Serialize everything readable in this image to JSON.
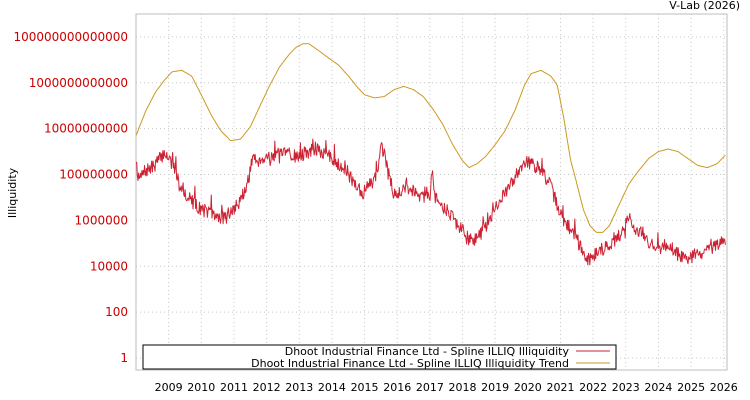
{
  "chart_data": {
    "type": "line",
    "title": "",
    "credit": "V-Lab (2026)",
    "ylabel": "Illiquidity",
    "xlabel": "",
    "yscale": "log",
    "ylim": [
      0.3,
      1000000000000000
    ],
    "xlim": [
      2008.0,
      2026.1
    ],
    "grid": true,
    "legend_position": "bottom",
    "y_ticks": [
      {
        "value": 1,
        "label": "1"
      },
      {
        "value": 100,
        "label": "100"
      },
      {
        "value": 10000,
        "label": "10000"
      },
      {
        "value": 1000000,
        "label": "1000000"
      },
      {
        "value": 100000000,
        "label": "100000000"
      },
      {
        "value": 10000000000,
        "label": "10000000000"
      },
      {
        "value": 1000000000000,
        "label": "1000000000000"
      },
      {
        "value": 100000000000000,
        "label": "100000000000000"
      }
    ],
    "x_ticks": [
      {
        "value": 2009,
        "label": "2009"
      },
      {
        "value": 2010,
        "label": "2010"
      },
      {
        "value": 2011,
        "label": "2011"
      },
      {
        "value": 2012,
        "label": "2012"
      },
      {
        "value": 2013,
        "label": "2013"
      },
      {
        "value": 2014,
        "label": "2014"
      },
      {
        "value": 2015,
        "label": "2015"
      },
      {
        "value": 2016,
        "label": "2016"
      },
      {
        "value": 2017,
        "label": "2017"
      },
      {
        "value": 2018,
        "label": "2018"
      },
      {
        "value": 2019,
        "label": "2019"
      },
      {
        "value": 2020,
        "label": "2020"
      },
      {
        "value": 2021,
        "label": "2021"
      },
      {
        "value": 2022,
        "label": "2022"
      },
      {
        "value": 2023,
        "label": "2023"
      },
      {
        "value": 2024,
        "label": "2024"
      },
      {
        "value": 2025,
        "label": "2025"
      },
      {
        "value": 2026,
        "label": "2026"
      }
    ],
    "series": [
      {
        "name": "Dhoot Industrial Finance Ltd - Spline ILLIQ Illiquidity",
        "color": "#cc2233",
        "x": [
          2008.0,
          2008.08,
          2008.15,
          2008.3,
          2008.5,
          2008.7,
          2008.9,
          2009.1,
          2009.3,
          2009.45,
          2009.6,
          2009.8,
          2010.0,
          2010.2,
          2010.4,
          2010.6,
          2010.8,
          2011.0,
          2011.2,
          2011.4,
          2011.6,
          2011.7,
          2011.85,
          2012.0,
          2012.3,
          2012.6,
          2012.9,
          2013.2,
          2013.5,
          2013.8,
          2014.0,
          2014.2,
          2014.4,
          2014.6,
          2014.8,
          2014.95,
          2015.1,
          2015.25,
          2015.4,
          2015.5,
          2015.6,
          2015.75,
          2015.9,
          2016.1,
          2016.3,
          2016.6,
          2016.9,
          2017.0,
          2017.05,
          2017.15,
          2017.3,
          2017.5,
          2017.7,
          2017.9,
          2018.1,
          2018.3,
          2018.5,
          2018.7,
          2018.9,
          2019.1,
          2019.3,
          2019.5,
          2019.7,
          2019.9,
          2020.1,
          2020.3,
          2020.5,
          2020.7,
          2020.9,
          2021.1,
          2021.3,
          2021.5,
          2021.7,
          2021.9,
          2022.1,
          2022.3,
          2022.5,
          2022.7,
          2022.9,
          2023.0,
          2023.1,
          2023.2,
          2023.35,
          2023.5,
          2023.7,
          2023.9,
          2024.1,
          2024.3,
          2024.5,
          2024.7,
          2024.9,
          2025.1,
          2025.3,
          2025.5,
          2025.7,
          2025.9,
          2026.05
        ],
        "values": [
          500000000,
          60000000,
          80000000,
          150000000,
          200000000,
          450000000,
          900000000,
          300000000,
          60000000,
          20000000,
          10000000,
          5000000,
          3000000,
          2500000,
          1500000,
          1300000,
          1500000,
          3000000,
          8000000,
          30000000,
          800000000,
          400000000,
          500000000,
          600000000,
          700000000,
          800000000,
          600000000,
          900000000,
          1200000000,
          800000000,
          500000000,
          300000000,
          200000000,
          60000000,
          30000000,
          15000000,
          30000000,
          50000000,
          120000000,
          1500000000,
          800000000,
          80000000,
          15000000,
          20000000,
          25000000,
          18000000,
          15000000,
          10000000,
          200000000,
          12000000,
          5000000,
          3000000,
          1500000,
          500000,
          200000,
          120000,
          200000,
          500000,
          2000000,
          5000000,
          15000000,
          40000000,
          150000000,
          400000000,
          300000000,
          200000000,
          100000000,
          30000000,
          5000000,
          800000,
          400000,
          200000,
          30000,
          20000,
          40000,
          60000,
          80000,
          150000,
          300000,
          600000,
          2000000,
          500000,
          400000,
          300000,
          100000,
          80000,
          60000,
          100000,
          40000,
          30000,
          20000,
          30000,
          40000,
          50000,
          60000,
          90000,
          120000
        ]
      },
      {
        "name": "Dhoot Industrial Finance Ltd - Spline ILLIQ Illiquidity Trend",
        "color": "#cc9922",
        "x": [
          2008.0,
          2008.3,
          2008.6,
          2008.85,
          2009.1,
          2009.4,
          2009.7,
          2010.0,
          2010.3,
          2010.6,
          2010.9,
          2011.2,
          2011.5,
          2011.8,
          2012.1,
          2012.4,
          2012.7,
          2012.9,
          2013.1,
          2013.3,
          2013.6,
          2013.9,
          2014.2,
          2014.5,
          2014.8,
          2015.0,
          2015.3,
          2015.6,
          2015.9,
          2016.2,
          2016.5,
          2016.8,
          2017.1,
          2017.4,
          2017.7,
          2018.0,
          2018.2,
          2018.45,
          2018.7,
          2019.0,
          2019.3,
          2019.6,
          2019.9,
          2020.1,
          2020.4,
          2020.7,
          2020.9,
          2021.1,
          2021.3,
          2021.5,
          2021.7,
          2021.9,
          2022.1,
          2022.3,
          2022.5,
          2022.8,
          2023.1,
          2023.4,
          2023.7,
          2024.0,
          2024.3,
          2024.6,
          2024.9,
          2025.2,
          2025.5,
          2025.8,
          2026.05
        ],
        "values": [
          5000000000,
          60000000000,
          400000000000,
          1200000000000,
          3000000000000,
          3500000000000,
          2000000000000,
          300000000000,
          40000000000,
          8000000000,
          3000000000,
          3500000000,
          12000000000,
          100000000000,
          800000000000,
          5000000000000,
          18000000000000,
          35000000000000,
          50000000000000,
          50000000000000,
          25000000000000,
          12000000000000,
          6000000000000,
          2000000000000,
          600000000000,
          300000000000,
          220000000000,
          250000000000,
          500000000000,
          700000000000,
          500000000000,
          250000000000,
          70000000000,
          15000000000,
          2000000000,
          400000000,
          200000000,
          300000000,
          600000000,
          2000000000,
          8000000000,
          60000000000,
          800000000000,
          2500000000000,
          3500000000000,
          2000000000000,
          800000000000,
          30000000000,
          500000000,
          40000000,
          3000000,
          600000,
          300000,
          300000,
          600000,
          5000000,
          40000000,
          150000000,
          500000000,
          1000000000,
          1300000000,
          1000000000,
          500000000,
          250000000,
          200000000,
          300000000,
          700000000
        ]
      }
    ]
  }
}
